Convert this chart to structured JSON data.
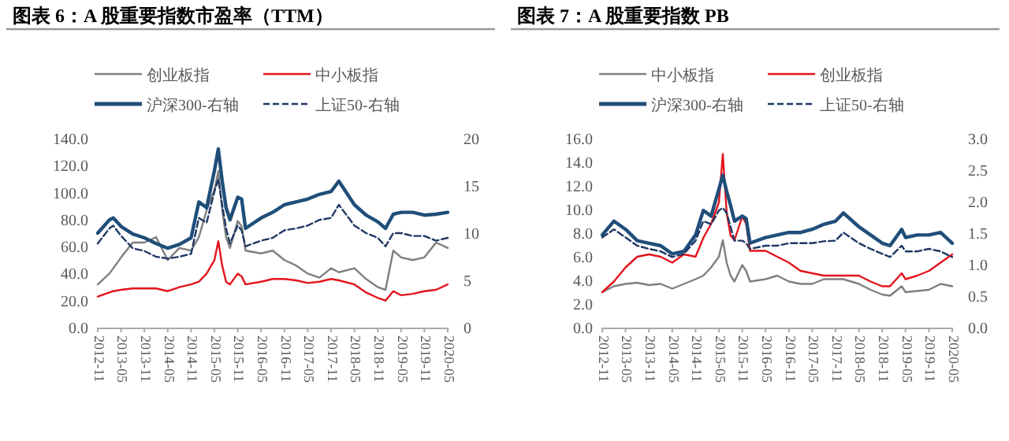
{
  "chart_data": [
    {
      "type": "line",
      "title": "图表 6：A 股重要指数市盈率（TTM）",
      "legend": "top",
      "marker": "none",
      "xlim": [
        "2012-11",
        "2020-05"
      ],
      "xticks": [
        "2012-11",
        "2013-05",
        "2013-11",
        "2014-05",
        "2014-11",
        "2015-05",
        "2015-11",
        "2016-05",
        "2016-11",
        "2017-05",
        "2017-11",
        "2018-05",
        "2018-11",
        "2019-05",
        "2019-11",
        "2020-05"
      ],
      "ylim": [
        0,
        140
      ],
      "yticks": [
        {
          "value": 0,
          "label": "0.0"
        },
        {
          "value": 20,
          "label": "20.0"
        },
        {
          "value": 40,
          "label": "40.0"
        },
        {
          "value": 60,
          "label": "60.0"
        },
        {
          "value": 80,
          "label": "80.0"
        },
        {
          "value": 100,
          "label": "100.0"
        },
        {
          "value": 120,
          "label": "120.0"
        },
        {
          "value": 140,
          "label": "140.0"
        }
      ],
      "y2lim": [
        0,
        20
      ],
      "y2ticks": [
        0,
        5,
        10,
        15,
        20
      ],
      "x": [
        "2012-11",
        "2013-02",
        "2013-03",
        "2013-05",
        "2013-08",
        "2013-11",
        "2014-02",
        "2014-05",
        "2014-08",
        "2014-11",
        "2015-01",
        "2015-03",
        "2015-05",
        "2015-06",
        "2015-07",
        "2015-08",
        "2015-09",
        "2015-11",
        "2015-12",
        "2016-01",
        "2016-05",
        "2016-08",
        "2016-11",
        "2017-02",
        "2017-05",
        "2017-08",
        "2017-11",
        "2018-01",
        "2018-05",
        "2018-08",
        "2018-11",
        "2019-01",
        "2019-03",
        "2019-05",
        "2019-08",
        "2019-11",
        "2020-02",
        "2020-05"
      ],
      "series": [
        {
          "name": "创业板指",
          "color": "#7f7f7f",
          "line_style": "solid",
          "values": [
            32,
            40,
            44,
            52,
            63,
            63,
            67,
            50,
            59,
            57,
            67,
            87,
            102,
            116,
            87,
            67,
            59,
            79,
            75,
            57,
            55,
            57,
            50,
            46,
            40,
            37,
            44,
            41,
            44,
            36,
            30,
            28,
            57,
            52,
            50,
            52,
            63,
            59
          ]
        },
        {
          "name": "中小板指",
          "color": "#e3141c",
          "line_style": "solid",
          "values": [
            23,
            26,
            27,
            28,
            29,
            29,
            29,
            27,
            30,
            32,
            34,
            40,
            50,
            64,
            46,
            34,
            32,
            40,
            38,
            32,
            34,
            36,
            36,
            35,
            33,
            34,
            36,
            35,
            32,
            26,
            22,
            20,
            27,
            24,
            25,
            27,
            28,
            32
          ]
        },
        {
          "name": "沪深300-右轴",
          "color": "#1f4e79",
          "line_style": "solid",
          "axis": "y2",
          "values": [
            10.0,
            11.4,
            11.6,
            10.7,
            9.9,
            9.5,
            8.9,
            8.4,
            8.8,
            9.5,
            13.3,
            12.7,
            16.6,
            18.9,
            15.5,
            12.7,
            11.4,
            13.8,
            13.6,
            10.5,
            11.6,
            12.2,
            13.0,
            13.3,
            13.6,
            14.1,
            14.4,
            15.5,
            13.0,
            11.9,
            11.2,
            10.5,
            12.0,
            12.2,
            12.2,
            11.9,
            12.0,
            12.2
          ]
        },
        {
          "name": "上证50-右轴",
          "color": "#1f3864",
          "line_style": "dashed",
          "axis": "y2",
          "values": [
            8.9,
            10.5,
            10.8,
            9.7,
            8.4,
            8.1,
            7.5,
            7.3,
            7.5,
            7.8,
            11.6,
            11.1,
            14.4,
            15.7,
            13.0,
            10.5,
            8.9,
            10.8,
            10.3,
            8.6,
            9.2,
            9.5,
            10.3,
            10.5,
            10.8,
            11.4,
            11.6,
            13.0,
            10.8,
            10.0,
            9.5,
            8.6,
            10.0,
            10.0,
            9.7,
            9.7,
            9.2,
            9.5
          ]
        }
      ]
    },
    {
      "type": "line",
      "title": "图表 7：A 股重要指数 PB",
      "legend": "top",
      "marker": "none",
      "xlim": [
        "2012-11",
        "2020-05"
      ],
      "xticks": [
        "2012-11",
        "2013-05",
        "2013-11",
        "2014-05",
        "2014-11",
        "2015-05",
        "2015-11",
        "2016-05",
        "2016-11",
        "2017-05",
        "2017-11",
        "2018-05",
        "2018-11",
        "2019-05",
        "2019-11",
        "2020-05"
      ],
      "ylim": [
        0,
        16
      ],
      "yticks": [
        {
          "value": 0,
          "label": "0.0"
        },
        {
          "value": 2,
          "label": "2.0"
        },
        {
          "value": 4,
          "label": "4.0"
        },
        {
          "value": 6,
          "label": "6.0"
        },
        {
          "value": 8,
          "label": "8.0"
        },
        {
          "value": 10,
          "label": "10.0"
        },
        {
          "value": 12,
          "label": "12.0"
        },
        {
          "value": 14,
          "label": "14.0"
        },
        {
          "value": 16,
          "label": "16.0"
        }
      ],
      "y2lim": [
        0,
        3
      ],
      "y2ticks": [
        {
          "value": 0,
          "label": "0.0"
        },
        {
          "value": 0.5,
          "label": "0.5"
        },
        {
          "value": 1,
          "label": "1.0"
        },
        {
          "value": 1.5,
          "label": "1.5"
        },
        {
          "value": 2,
          "label": "2.0"
        },
        {
          "value": 2.5,
          "label": "2.5"
        },
        {
          "value": 3,
          "label": "3.0"
        }
      ],
      "x": [
        "2012-11",
        "2013-02",
        "2013-05",
        "2013-08",
        "2013-11",
        "2014-02",
        "2014-05",
        "2014-08",
        "2014-11",
        "2015-01",
        "2015-03",
        "2015-05",
        "2015-06",
        "2015-07",
        "2015-08",
        "2015-09",
        "2015-11",
        "2015-12",
        "2016-01",
        "2016-05",
        "2016-08",
        "2016-11",
        "2017-02",
        "2017-05",
        "2017-08",
        "2017-11",
        "2018-01",
        "2018-05",
        "2018-08",
        "2018-11",
        "2019-01",
        "2019-04",
        "2019-05",
        "2019-08",
        "2019-11",
        "2020-02",
        "2020-05"
      ],
      "series": [
        {
          "name": "中小板指",
          "color": "#7f7f7f",
          "line_style": "solid",
          "values": [
            3.0,
            3.5,
            3.7,
            3.8,
            3.6,
            3.7,
            3.3,
            3.7,
            4.1,
            4.4,
            5.1,
            6.0,
            7.4,
            5.5,
            4.4,
            3.9,
            5.3,
            4.8,
            3.9,
            4.1,
            4.4,
            3.9,
            3.7,
            3.7,
            4.1,
            4.1,
            4.1,
            3.7,
            3.2,
            2.8,
            2.7,
            3.5,
            3.0,
            3.1,
            3.2,
            3.7,
            3.5
          ]
        },
        {
          "name": "创业板指",
          "color": "#e3141c",
          "line_style": "solid",
          "values": [
            3.0,
            3.9,
            5.1,
            6.0,
            6.2,
            6.0,
            5.5,
            6.2,
            6.0,
            7.6,
            8.8,
            10.6,
            14.7,
            9.7,
            7.8,
            7.4,
            9.4,
            8.8,
            6.5,
            6.5,
            6.0,
            5.5,
            4.8,
            4.6,
            4.4,
            4.4,
            4.4,
            4.4,
            3.9,
            3.5,
            3.5,
            4.6,
            4.1,
            4.4,
            4.8,
            5.5,
            6.2
          ]
        },
        {
          "name": "沪深300-右轴",
          "color": "#1f4e79",
          "line_style": "solid",
          "axis": "y2",
          "values": [
            1.47,
            1.69,
            1.56,
            1.38,
            1.34,
            1.3,
            1.17,
            1.21,
            1.47,
            1.86,
            1.77,
            2.2,
            2.42,
            2.16,
            1.94,
            1.69,
            1.77,
            1.73,
            1.34,
            1.43,
            1.47,
            1.51,
            1.51,
            1.56,
            1.64,
            1.69,
            1.82,
            1.6,
            1.47,
            1.34,
            1.3,
            1.56,
            1.43,
            1.47,
            1.47,
            1.51,
            1.34
          ]
        },
        {
          "name": "上证50-右轴",
          "color": "#1f3864",
          "line_style": "dashed",
          "axis": "y2",
          "values": [
            1.43,
            1.56,
            1.43,
            1.3,
            1.25,
            1.21,
            1.12,
            1.17,
            1.38,
            1.69,
            1.64,
            1.86,
            1.9,
            1.82,
            1.6,
            1.38,
            1.38,
            1.34,
            1.25,
            1.3,
            1.3,
            1.34,
            1.34,
            1.34,
            1.37,
            1.38,
            1.51,
            1.34,
            1.25,
            1.17,
            1.12,
            1.3,
            1.21,
            1.21,
            1.25,
            1.21,
            1.12
          ]
        }
      ]
    }
  ]
}
